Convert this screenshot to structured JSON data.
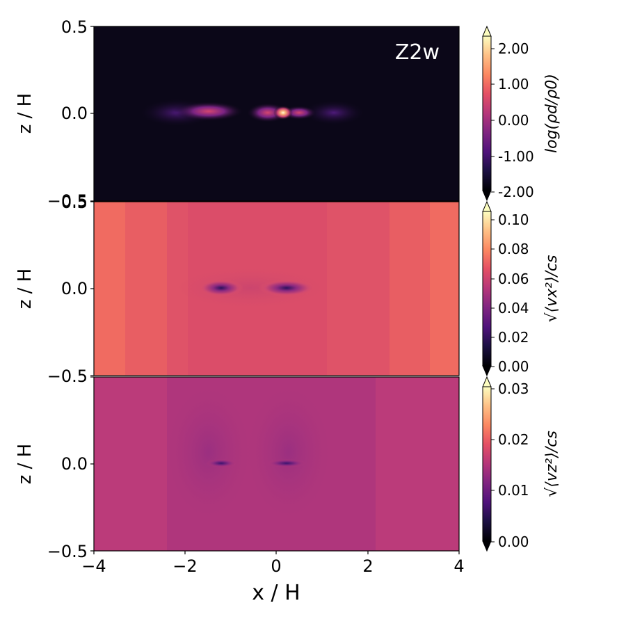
{
  "chart_data": [
    {
      "type": "heatmap",
      "panel_label": "Z2w",
      "ylabel": "z / H",
      "colorbar_label": "log(ρd/ρ0)",
      "colormap": "magma",
      "xlim": [
        -4,
        4
      ],
      "ylim": [
        -0.5,
        0.5
      ],
      "yticks": [
        "0.5",
        "0.0",
        "−0.5"
      ],
      "clim": [
        -2.0,
        2.5
      ],
      "cbar_ticks": [
        "-2.00",
        "-1.00",
        "0.00",
        "1.00",
        "2.00"
      ],
      "background_value": -2.0,
      "features": [
        {
          "x": 0.15,
          "z": 0.0,
          "peak": 2.4
        },
        {
          "x": -1.2,
          "z": 0.0,
          "peak": 0.6
        },
        {
          "x": -2.0,
          "z": 0.0,
          "peak": -0.5
        },
        {
          "x": 1.0,
          "z": 0.0,
          "peak": -1.3
        }
      ]
    },
    {
      "type": "heatmap",
      "ylabel": "z / H",
      "colorbar_label": "√⟨vx²⟩/cs",
      "colormap": "magma",
      "xlim": [
        -4,
        4
      ],
      "ylim": [
        -0.5,
        0.5
      ],
      "yticks": [
        "0.5",
        "0.0",
        "−0.5"
      ],
      "clim": [
        0.0,
        0.11
      ],
      "cbar_ticks": [
        "0.00",
        "0.02",
        "0.04",
        "0.06",
        "0.08",
        "0.10"
      ],
      "background_value": 0.072,
      "features": [
        {
          "x": -1.2,
          "z": 0.0,
          "min": 0.035
        },
        {
          "x": 0.2,
          "z": 0.0,
          "min": 0.035
        }
      ]
    },
    {
      "type": "heatmap",
      "ylabel": "z / H",
      "xlabel": "x / H",
      "colorbar_label": "√⟨vz²⟩/cs",
      "colormap": "magma",
      "xlim": [
        -4,
        4
      ],
      "ylim": [
        -0.5,
        0.5
      ],
      "xticks": [
        "−4",
        "−2",
        "0",
        "2",
        "4"
      ],
      "yticks": [
        "0.0",
        "−0.5"
      ],
      "clim": [
        0.0,
        0.031
      ],
      "cbar_ticks": [
        "0.00",
        "0.01",
        "0.02",
        "0.03"
      ],
      "background_value": 0.019,
      "features": [
        {
          "x": -1.2,
          "z": 0.0,
          "min": 0.011
        },
        {
          "x": 0.2,
          "z": 0.0,
          "min": 0.011
        }
      ]
    }
  ]
}
